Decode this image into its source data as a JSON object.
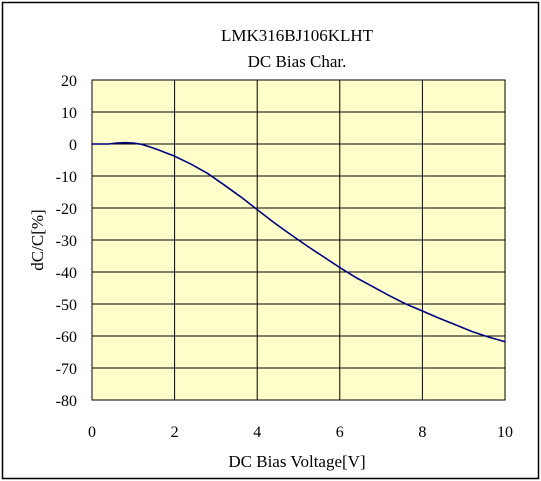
{
  "chart_data": {
    "type": "line",
    "title": "LMK316BJ106KLHT",
    "subtitle": "DC Bias Char.",
    "xlabel": "DC Bias Voltage[V]",
    "ylabel": "dC/C[%]",
    "xlim": [
      0,
      10
    ],
    "ylim": [
      -80,
      20
    ],
    "x_ticks": [
      0,
      2,
      4,
      6,
      8,
      10
    ],
    "y_ticks": [
      20,
      10,
      0,
      -10,
      -20,
      -30,
      -40,
      -50,
      -60,
      -70,
      -80
    ],
    "x_tick_labels": [
      "0",
      "2",
      "4",
      "6",
      "8",
      "10"
    ],
    "y_tick_labels": [
      "20",
      "10",
      "0",
      "-10",
      "-20",
      "-30",
      "-40",
      "-50",
      "-60",
      "-70",
      "-80"
    ],
    "grid": true,
    "plot_background": "#ffffcc",
    "line_color": "#000080",
    "series": [
      {
        "name": "",
        "x": [
          0,
          0.4,
          0.6,
          0.8,
          1.0,
          1.2,
          1.4,
          1.6,
          1.8,
          2.0,
          2.4,
          2.8,
          3.2,
          3.6,
          4.0,
          4.4,
          4.8,
          5.2,
          5.6,
          6.0,
          6.4,
          6.8,
          7.2,
          7.6,
          8.0,
          8.4,
          8.8,
          9.2,
          9.6,
          10.0
        ],
        "y": [
          0,
          0,
          0.3,
          0.4,
          0.3,
          -0.1,
          -0.9,
          -1.8,
          -2.8,
          -3.8,
          -6.3,
          -9.2,
          -12.8,
          -16.5,
          -20.5,
          -24.5,
          -28.2,
          -31.8,
          -35.2,
          -38.6,
          -41.8,
          -44.6,
          -47.4,
          -50.0,
          -52.2,
          -54.4,
          -56.5,
          -58.6,
          -60.3,
          -61.8
        ]
      }
    ]
  }
}
